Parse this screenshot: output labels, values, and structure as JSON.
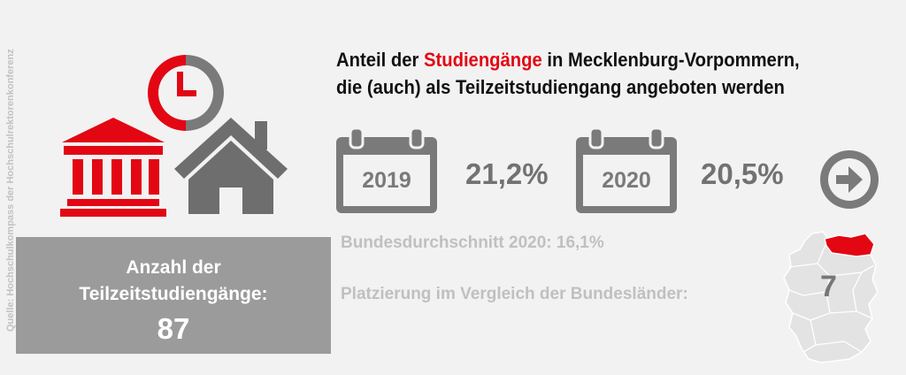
{
  "source": "Quelle: Hochschulkompass der Hochschulrektorenkonferenz",
  "title": {
    "part1": "Anteil der ",
    "highlight": "Studiengänge",
    "part2": " in Mecklenburg-Vorpommern,",
    "line2": "die (auch) als Teilzeitstudiengang angeboten werden"
  },
  "years": [
    {
      "year": "2019",
      "value": "21,2%"
    },
    {
      "year": "2020",
      "value": "20,5%"
    }
  ],
  "national_average": "Bundesdurchschnitt 2020: 16,1%",
  "ranking": {
    "label": "Platzierung im Vergleich der Bundesländer:",
    "value": "7"
  },
  "count": {
    "label_line1": "Anzahl der",
    "label_line2": "Teilzeitstudiengänge:",
    "value": "87"
  },
  "icons": [
    "clock-icon",
    "university-building-icon",
    "house-icon",
    "calendar-icon",
    "arrow-right-circle-icon",
    "germany-map-icon"
  ],
  "colors": {
    "accent": "#e30613",
    "gray_dark": "#727272",
    "gray_light": "#c0c0c0",
    "box": "#9b9b9b",
    "background": "#f2f2f2"
  }
}
